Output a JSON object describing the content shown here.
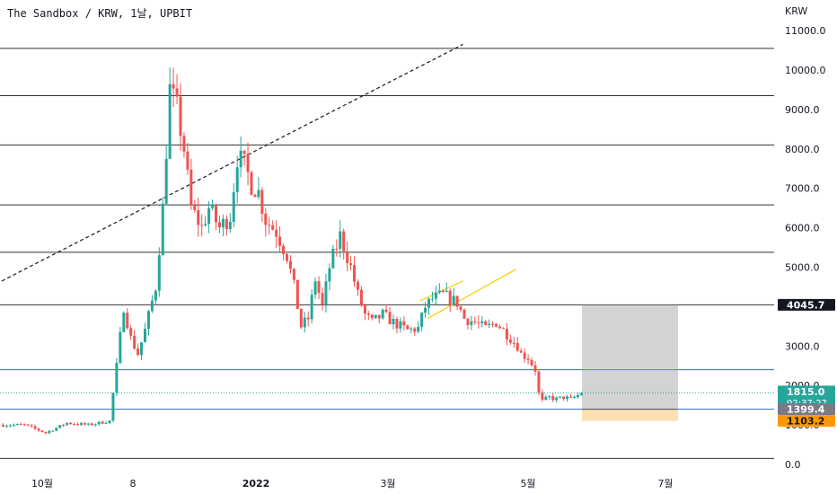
{
  "header": {
    "title": "The Sandbox / KRW, 1날, UPBIT",
    "currency": "KRW"
  },
  "chart_data": {
    "type": "candlestick",
    "ylim": [
      0,
      11800
    ],
    "y_ticks": [
      {
        "value": 0,
        "label": "0.0"
      },
      {
        "value": 1000,
        "label": "1000.0"
      },
      {
        "value": 2000,
        "label": "2000.0"
      },
      {
        "value": 3000,
        "label": "3000.0"
      },
      {
        "value": 4000,
        "label": "4000.0"
      },
      {
        "value": 5000,
        "label": "5000.0"
      },
      {
        "value": 6000,
        "label": "6000.0"
      },
      {
        "value": 7000,
        "label": "7000.0"
      },
      {
        "value": 8000,
        "label": "8000.0"
      },
      {
        "value": 9000,
        "label": "9000.0"
      },
      {
        "value": 10000,
        "label": "10000.0"
      },
      {
        "value": 11000,
        "label": "11000.0"
      }
    ],
    "x_ticks": [
      {
        "label": "10월",
        "bold": false
      },
      {
        "label": "8",
        "bold": false
      },
      {
        "label": "2022",
        "bold": true
      },
      {
        "label": "3월",
        "bold": false
      },
      {
        "label": "5월",
        "bold": false
      },
      {
        "label": "7월",
        "bold": false
      }
    ],
    "horizontal_levels": [
      {
        "value": 10550,
        "color": "#333333"
      },
      {
        "value": 9350,
        "color": "#333333"
      },
      {
        "value": 8100,
        "color": "#333333"
      },
      {
        "value": 6580,
        "color": "#333333"
      },
      {
        "value": 5380,
        "color": "#333333"
      },
      {
        "value": 4045.7,
        "color": "#333333"
      },
      {
        "value": 2400,
        "color": "#2962ff"
      },
      {
        "value": 1399.4,
        "color": "#2962ff"
      },
      {
        "value": 150,
        "color": "#333333"
      }
    ],
    "price_labels": [
      {
        "value": 4045.7,
        "text": "4045.7",
        "bg": "#131722",
        "fg": "#ffffff"
      },
      {
        "value": 1815.0,
        "text": "1815.0",
        "sub": "02:37:27",
        "bg": "#26a69a",
        "fg": "#ffffff"
      },
      {
        "value": 1399.4,
        "text": "1399.4",
        "bg": "#787b86",
        "fg": "#ffffff"
      },
      {
        "value": 1103.2,
        "text": "1103.2",
        "bg": "#ff9800",
        "fg": "#131722"
      }
    ],
    "last_price": 1815.0,
    "position_box": {
      "top": 4045.7,
      "entry": 1399.4,
      "stop": 1103.2,
      "profit_color": "#9e9e9e",
      "loss_color": "#ffcc80"
    },
    "trend_lines": [
      {
        "from": [
          0,
          4650
        ],
        "to": [
          130,
          10650
        ],
        "style": "dashed",
        "color": "#131722"
      },
      {
        "from": [
          118,
          4150
        ],
        "to": [
          130,
          4650
        ],
        "style": "solid",
        "color": "#f5d000"
      },
      {
        "from": [
          120,
          3700
        ],
        "to": [
          145,
          4950
        ],
        "style": "solid",
        "color": "#f5d000"
      }
    ],
    "anchors": [
      [
        0,
        1000
      ],
      [
        6,
        1000
      ],
      [
        12,
        800
      ],
      [
        18,
        1050
      ],
      [
        24,
        1000
      ],
      [
        30,
        1100
      ],
      [
        32,
        2500
      ],
      [
        34,
        4000
      ],
      [
        36,
        3200
      ],
      [
        38,
        2800
      ],
      [
        40,
        3400
      ],
      [
        43,
        4500
      ],
      [
        45,
        6500
      ],
      [
        47,
        9500
      ],
      [
        49,
        9000
      ],
      [
        51,
        8000
      ],
      [
        53,
        6500
      ],
      [
        56,
        6000
      ],
      [
        58,
        6500
      ],
      [
        61,
        6000
      ],
      [
        64,
        6300
      ],
      [
        66,
        7800
      ],
      [
        68,
        7600
      ],
      [
        70,
        7100
      ],
      [
        72,
        6900
      ],
      [
        74,
        6200
      ],
      [
        77,
        5900
      ],
      [
        80,
        5300
      ],
      [
        82,
        4500
      ],
      [
        84,
        3500
      ],
      [
        86,
        3700
      ],
      [
        88,
        4700
      ],
      [
        90,
        4000
      ],
      [
        92,
        5000
      ],
      [
        95,
        5800
      ],
      [
        98,
        5000
      ],
      [
        100,
        4300
      ],
      [
        102,
        3800
      ],
      [
        104,
        3600
      ],
      [
        107,
        3800
      ],
      [
        110,
        3600
      ],
      [
        114,
        3400
      ],
      [
        117,
        3450
      ],
      [
        119,
        4000
      ],
      [
        121,
        4200
      ],
      [
        124,
        4300
      ],
      [
        128,
        4100
      ],
      [
        130,
        3700
      ],
      [
        133,
        3600
      ],
      [
        136,
        3450
      ],
      [
        139,
        3600
      ],
      [
        142,
        3300
      ],
      [
        145,
        3000
      ],
      [
        146,
        2800
      ],
      [
        148,
        2700
      ],
      [
        150,
        2400
      ],
      [
        151,
        1800
      ],
      [
        152,
        1600
      ],
      [
        154,
        1700
      ],
      [
        156,
        1650
      ],
      [
        158,
        1700
      ],
      [
        160,
        1650
      ],
      [
        162,
        1750
      ],
      [
        163,
        1815
      ]
    ]
  }
}
